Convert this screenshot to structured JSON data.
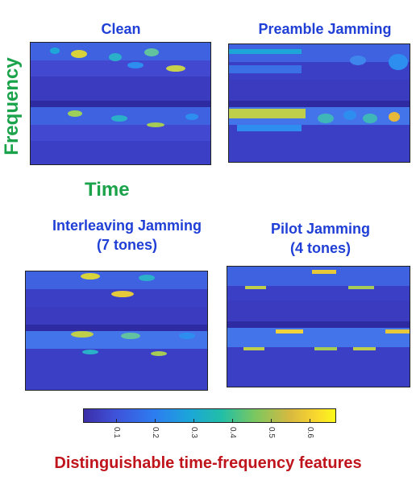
{
  "panels": [
    {
      "id": "clean",
      "title_lines": [
        "Clean"
      ]
    },
    {
      "id": "preamble",
      "title_lines": [
        "Preamble Jamming"
      ]
    },
    {
      "id": "interleaving",
      "title_lines": [
        "Interleaving Jamming",
        "(7 tones)"
      ]
    },
    {
      "id": "pilot",
      "title_lines": [
        "Pilot Jamming",
        "(4 tones)"
      ]
    }
  ],
  "axes": {
    "frequency_label": "Frequency",
    "time_label": "Time"
  },
  "colorbar": {
    "ticks": [
      "0.1",
      "0.2",
      "0.3",
      "0.4",
      "0.5",
      "0.6"
    ],
    "colors": [
      "#3b2ea8",
      "#3f51d8",
      "#2d7cf0",
      "#1ba6d9",
      "#22bfa6",
      "#7bc760",
      "#d8b940",
      "#f9d62f",
      "#fbf91a"
    ]
  },
  "caption": "Distinguishable time-frequency features"
}
